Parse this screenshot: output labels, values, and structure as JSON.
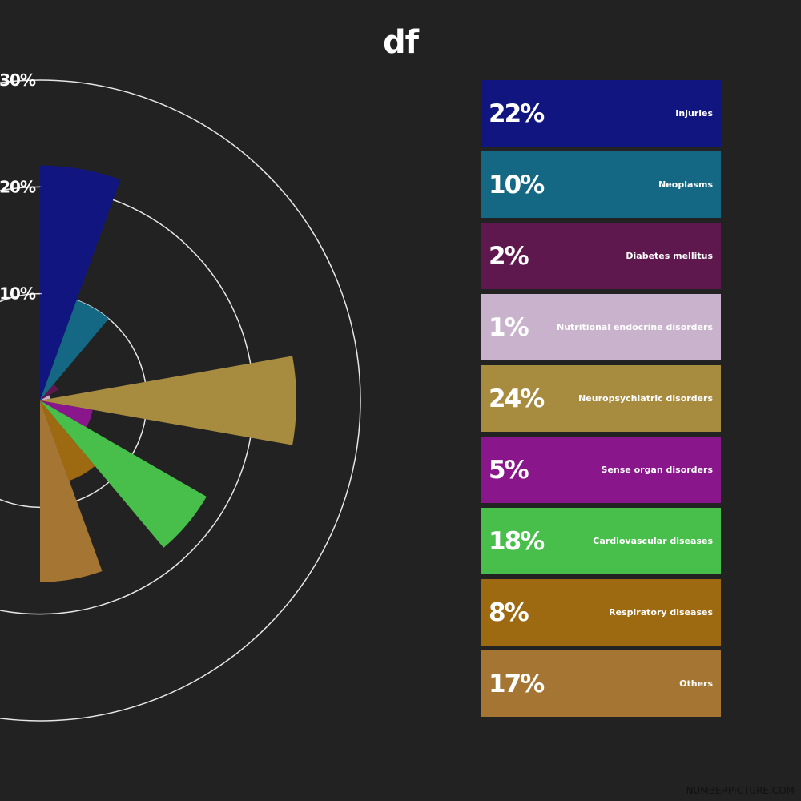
{
  "title": "df",
  "watermark": "NUMBERPICTURE.COM",
  "chart_data": {
    "type": "polar-area",
    "title": "df",
    "value_unit": "%",
    "radial_ticks": [
      "10%",
      "20%",
      "30%"
    ],
    "radial_tick_values": [
      10,
      20,
      30
    ],
    "rmax": 30,
    "legend_placement": "right",
    "series": [
      {
        "label": "Injuries",
        "value": 22,
        "display": "22%",
        "color": "#111580"
      },
      {
        "label": "Neoplasms",
        "value": 10,
        "display": "10%",
        "color": "#146884"
      },
      {
        "label": "Diabetes mellitus",
        "value": 2,
        "display": "2%",
        "color": "#5e184d"
      },
      {
        "label": "Nutritional endocrine disorders",
        "value": 1,
        "display": "1%",
        "color": "#c9b3cc"
      },
      {
        "label": "Neuropsychiatric disorders",
        "value": 24,
        "display": "24%",
        "color": "#a78b3f"
      },
      {
        "label": "Sense organ disorders",
        "value": 5,
        "display": "5%",
        "color": "#89178b"
      },
      {
        "label": "Cardiovascular diseases",
        "value": 18,
        "display": "18%",
        "color": "#48bf4a"
      },
      {
        "label": "Respiratory diseases",
        "value": 8,
        "display": "8%",
        "color": "#9d6911"
      },
      {
        "label": "Others",
        "value": 17,
        "display": "17%",
        "color": "#a57533"
      }
    ]
  }
}
